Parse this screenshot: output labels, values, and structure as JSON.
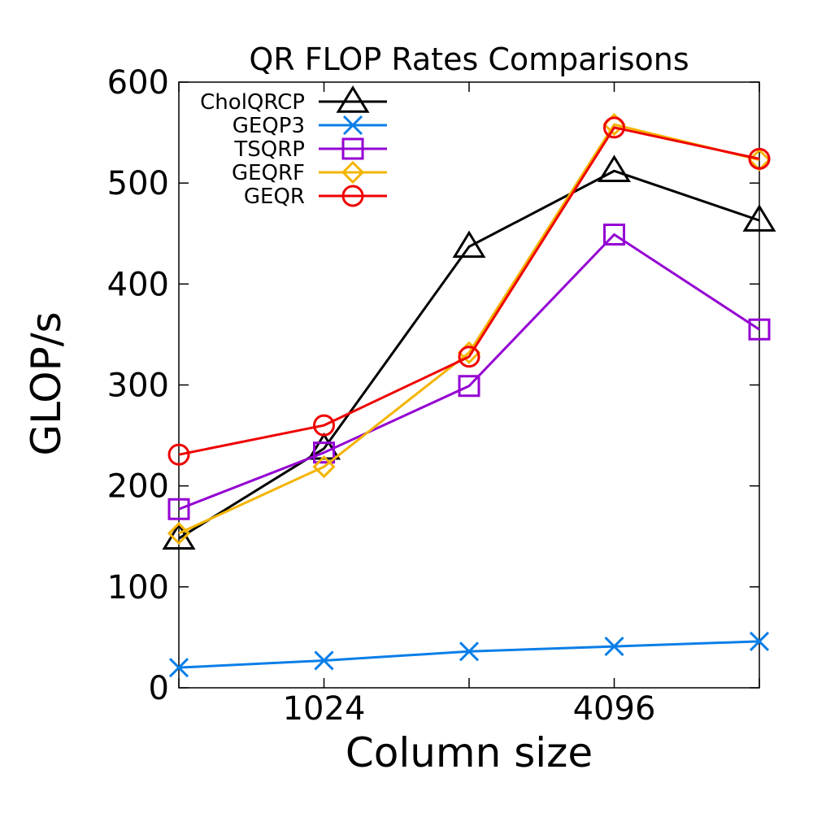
{
  "chart_data": {
    "type": "line",
    "title": "QR FLOP Rates Comparisons",
    "xlabel": "Column size",
    "ylabel": "GLOP/s",
    "ylim": [
      0,
      600
    ],
    "y_ticks": [
      0,
      100,
      200,
      300,
      400,
      500,
      600
    ],
    "x_scale": "log2",
    "x": [
      512,
      1024,
      2048,
      4096,
      8192
    ],
    "x_tick_labels": [
      {
        "x": 1024,
        "label": "1024"
      },
      {
        "x": 4096,
        "label": "4096"
      }
    ],
    "grid": false,
    "legend_position": "top-left",
    "series": [
      {
        "name": "CholQRCP",
        "color": "#000000",
        "marker": "triangle",
        "values": [
          148,
          237,
          437,
          512,
          463
        ]
      },
      {
        "name": "GEQP3",
        "color": "#0a7ee8",
        "marker": "cross",
        "values": [
          20,
          27,
          36,
          41,
          46
        ]
      },
      {
        "name": "TSQRP",
        "color": "#9400d3",
        "marker": "square",
        "values": [
          177,
          233,
          299,
          449,
          355
        ]
      },
      {
        "name": "GEQRF",
        "color": "#f4b400",
        "marker": "diamond",
        "values": [
          153,
          219,
          332,
          558,
          523
        ]
      },
      {
        "name": "GEQR",
        "color": "#ee0000",
        "marker": "circle",
        "values": [
          231,
          260,
          328,
          555,
          524
        ]
      }
    ]
  }
}
